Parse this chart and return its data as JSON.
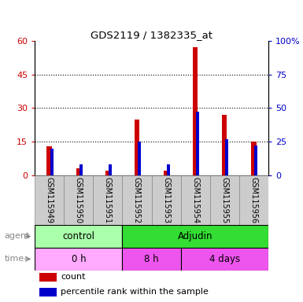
{
  "title": "GDS2119 / 1382335_at",
  "samples": [
    "GSM115949",
    "GSM115950",
    "GSM115951",
    "GSM115952",
    "GSM115953",
    "GSM115954",
    "GSM115955",
    "GSM115956"
  ],
  "count_values": [
    13,
    3,
    2,
    25,
    2,
    57,
    27,
    15
  ],
  "percentile_values": [
    20,
    8,
    8,
    25,
    8,
    47,
    27,
    22
  ],
  "left_ylim": [
    0,
    60
  ],
  "right_ylim": [
    0,
    100
  ],
  "left_yticks": [
    0,
    15,
    30,
    45,
    60
  ],
  "right_yticks": [
    0,
    25,
    50,
    75,
    100
  ],
  "right_yticklabels": [
    "0",
    "25",
    "50",
    "75",
    "100%"
  ],
  "count_color": "#cc0000",
  "percentile_color": "#0000cc",
  "agent_control_color": "#aaffaa",
  "agent_adjudin_color": "#33dd33",
  "time_0h_color": "#ffaaff",
  "time_8h_color": "#ee55ee",
  "time_4days_color": "#ee55ee",
  "label_bg_color": "#cccccc",
  "tick_label_color_left": "#cc0000",
  "tick_label_color_right": "#0000cc"
}
